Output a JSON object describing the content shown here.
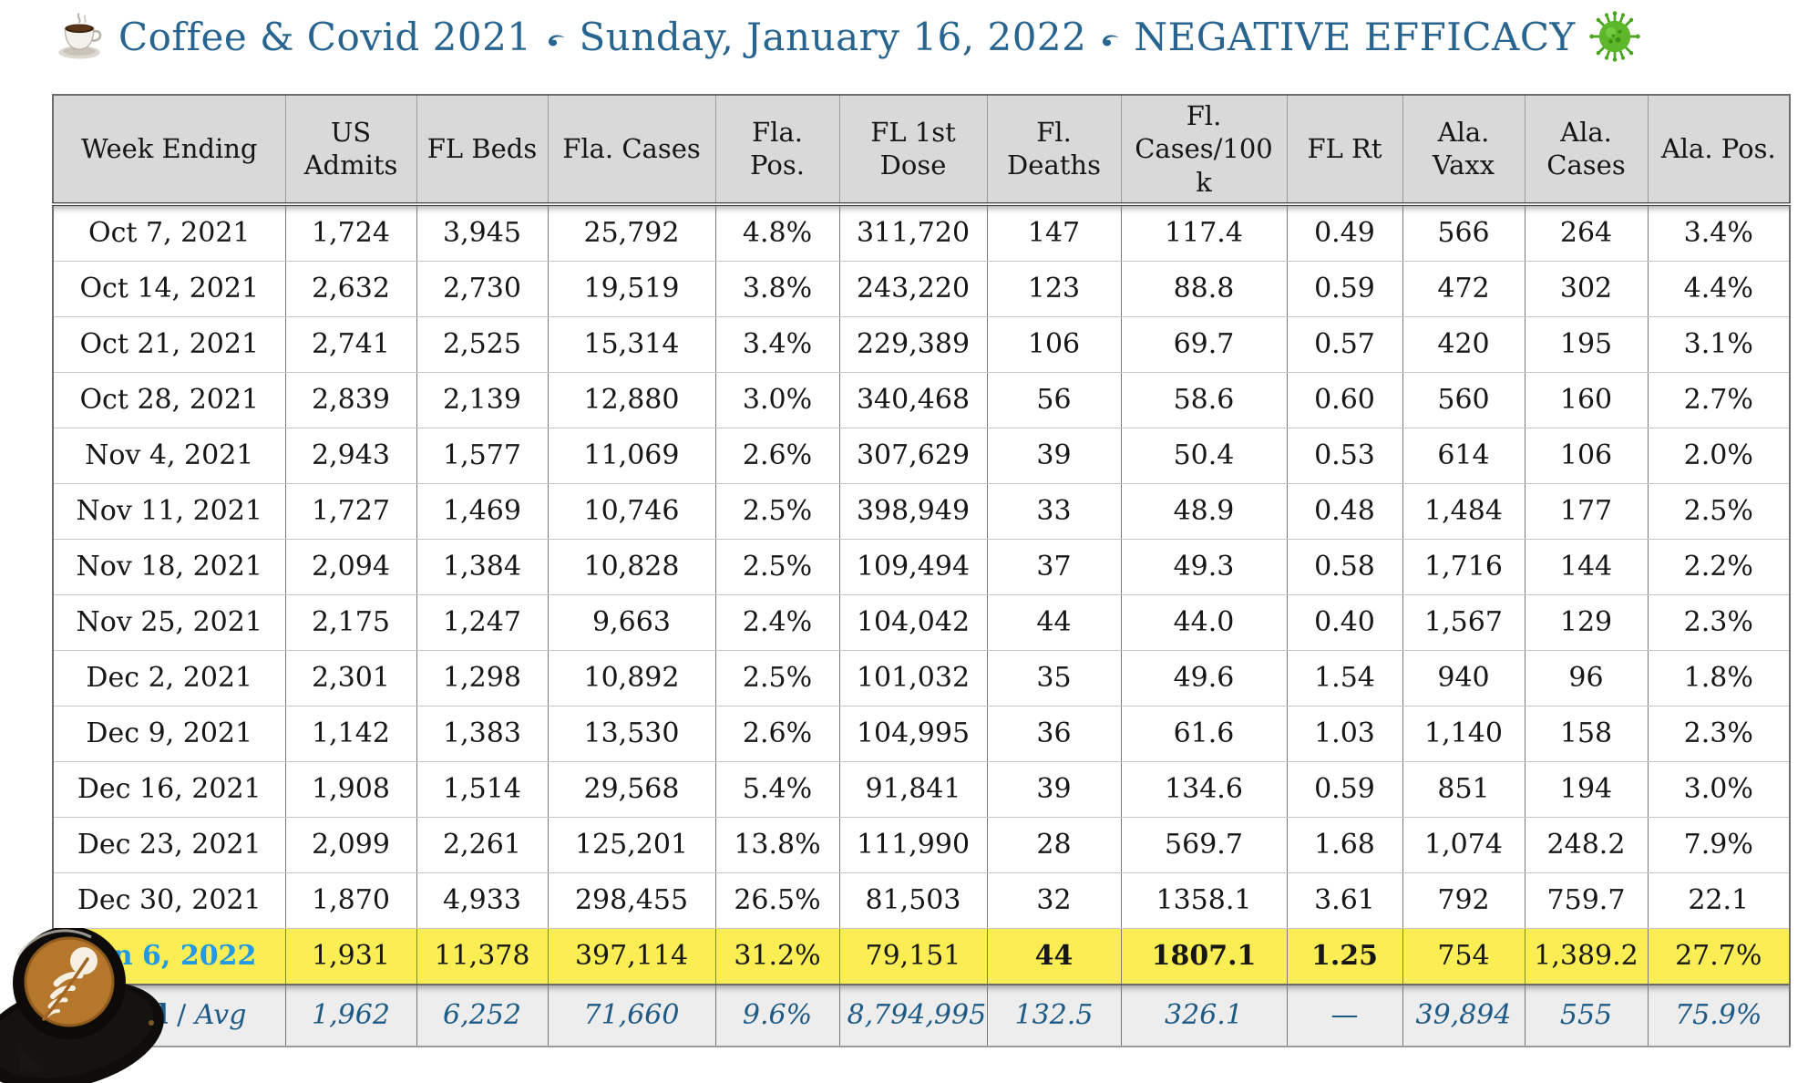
{
  "title": {
    "segments": [
      "Coffee & Covid 2021",
      "Sunday, January 16, 2022",
      "NEGATIVE EFFICACY"
    ],
    "icons": [
      "coffee-cup-icon",
      "fleuron-divider-icon",
      "virus-icon"
    ],
    "color": "#27648F"
  },
  "colors": {
    "header_bg": "#D9D9D9",
    "highlight_bg": "#FBEE54",
    "highlight_date_blue": "#2399E3",
    "total_row_blue": "#1D5A86",
    "title_blue": "#27648F"
  },
  "table": {
    "columns": [
      "Week Ending",
      "US Admits",
      "FL Beds",
      "Fla. Cases",
      "Fla. Pos.",
      "FL 1st Dose",
      "Fl. Deaths",
      "Fl. Cases/100k",
      "FL Rt",
      "Ala. Vaxx",
      "Ala. Cases",
      "Ala. Pos."
    ],
    "rows": [
      {
        "cells": [
          "Oct 7, 2021",
          "1,724",
          "3,945",
          "25,792",
          "4.8%",
          "311,720",
          "147",
          "117.4",
          "0.49",
          "566",
          "264",
          "3.4%"
        ]
      },
      {
        "cells": [
          "Oct 14, 2021",
          "2,632",
          "2,730",
          "19,519",
          "3.8%",
          "243,220",
          "123",
          "88.8",
          "0.59",
          "472",
          "302",
          "4.4%"
        ]
      },
      {
        "cells": [
          "Oct 21, 2021",
          "2,741",
          "2,525",
          "15,314",
          "3.4%",
          "229,389",
          "106",
          "69.7",
          "0.57",
          "420",
          "195",
          "3.1%"
        ]
      },
      {
        "cells": [
          "Oct 28, 2021",
          "2,839",
          "2,139",
          "12,880",
          "3.0%",
          "340,468",
          "56",
          "58.6",
          "0.60",
          "560",
          "160",
          "2.7%"
        ]
      },
      {
        "cells": [
          "Nov 4, 2021",
          "2,943",
          "1,577",
          "11,069",
          "2.6%",
          "307,629",
          "39",
          "50.4",
          "0.53",
          "614",
          "106",
          "2.0%"
        ]
      },
      {
        "cells": [
          "Nov 11, 2021",
          "1,727",
          "1,469",
          "10,746",
          "2.5%",
          "398,949",
          "33",
          "48.9",
          "0.48",
          "1,484",
          "177",
          "2.5%"
        ]
      },
      {
        "cells": [
          "Nov 18, 2021",
          "2,094",
          "1,384",
          "10,828",
          "2.5%",
          "109,494",
          "37",
          "49.3",
          "0.58",
          "1,716",
          "144",
          "2.2%"
        ]
      },
      {
        "cells": [
          "Nov 25, 2021",
          "2,175",
          "1,247",
          "9,663",
          "2.4%",
          "104,042",
          "44",
          "44.0",
          "0.40",
          "1,567",
          "129",
          "2.3%"
        ]
      },
      {
        "cells": [
          "Dec 2, 2021",
          "2,301",
          "1,298",
          "10,892",
          "2.5%",
          "101,032",
          "35",
          "49.6",
          "1.54",
          "940",
          "96",
          "1.8%"
        ]
      },
      {
        "cells": [
          "Dec 9, 2021",
          "1,142",
          "1,383",
          "13,530",
          "2.6%",
          "104,995",
          "36",
          "61.6",
          "1.03",
          "1,140",
          "158",
          "2.3%"
        ]
      },
      {
        "cells": [
          "Dec 16, 2021",
          "1,908",
          "1,514",
          "29,568",
          "5.4%",
          "91,841",
          "39",
          "134.6",
          "0.59",
          "851",
          "194",
          "3.0%"
        ]
      },
      {
        "cells": [
          "Dec 23, 2021",
          "2,099",
          "2,261",
          "125,201",
          "13.8%",
          "111,990",
          "28",
          "569.7",
          "1.68",
          "1,074",
          "248.2",
          "7.9%"
        ]
      },
      {
        "cells": [
          "Dec 30, 2021",
          "1,870",
          "4,933",
          "298,455",
          "26.5%",
          "81,503",
          "32",
          "1358.1",
          "3.61",
          "792",
          "759.7",
          "22.1"
        ]
      },
      {
        "cells": [
          "Jan 6, 2022",
          "1,931",
          "11,378",
          "397,114",
          "31.2%",
          "79,151",
          "44",
          "1807.1",
          "1.25",
          "754",
          "1,389.2",
          "27.7%"
        ],
        "highlight": true,
        "bold_cells": [
          6,
          7,
          8
        ]
      }
    ],
    "total_row": {
      "label_bold": "Total",
      "label_sep": " / ",
      "label_italic": "Avg",
      "cells": [
        "1,962",
        "6,252",
        "71,660",
        "9.6%",
        "8,794,995",
        "132.5",
        "326.1",
        "—",
        "39,894",
        "555",
        "75.9%"
      ]
    }
  }
}
